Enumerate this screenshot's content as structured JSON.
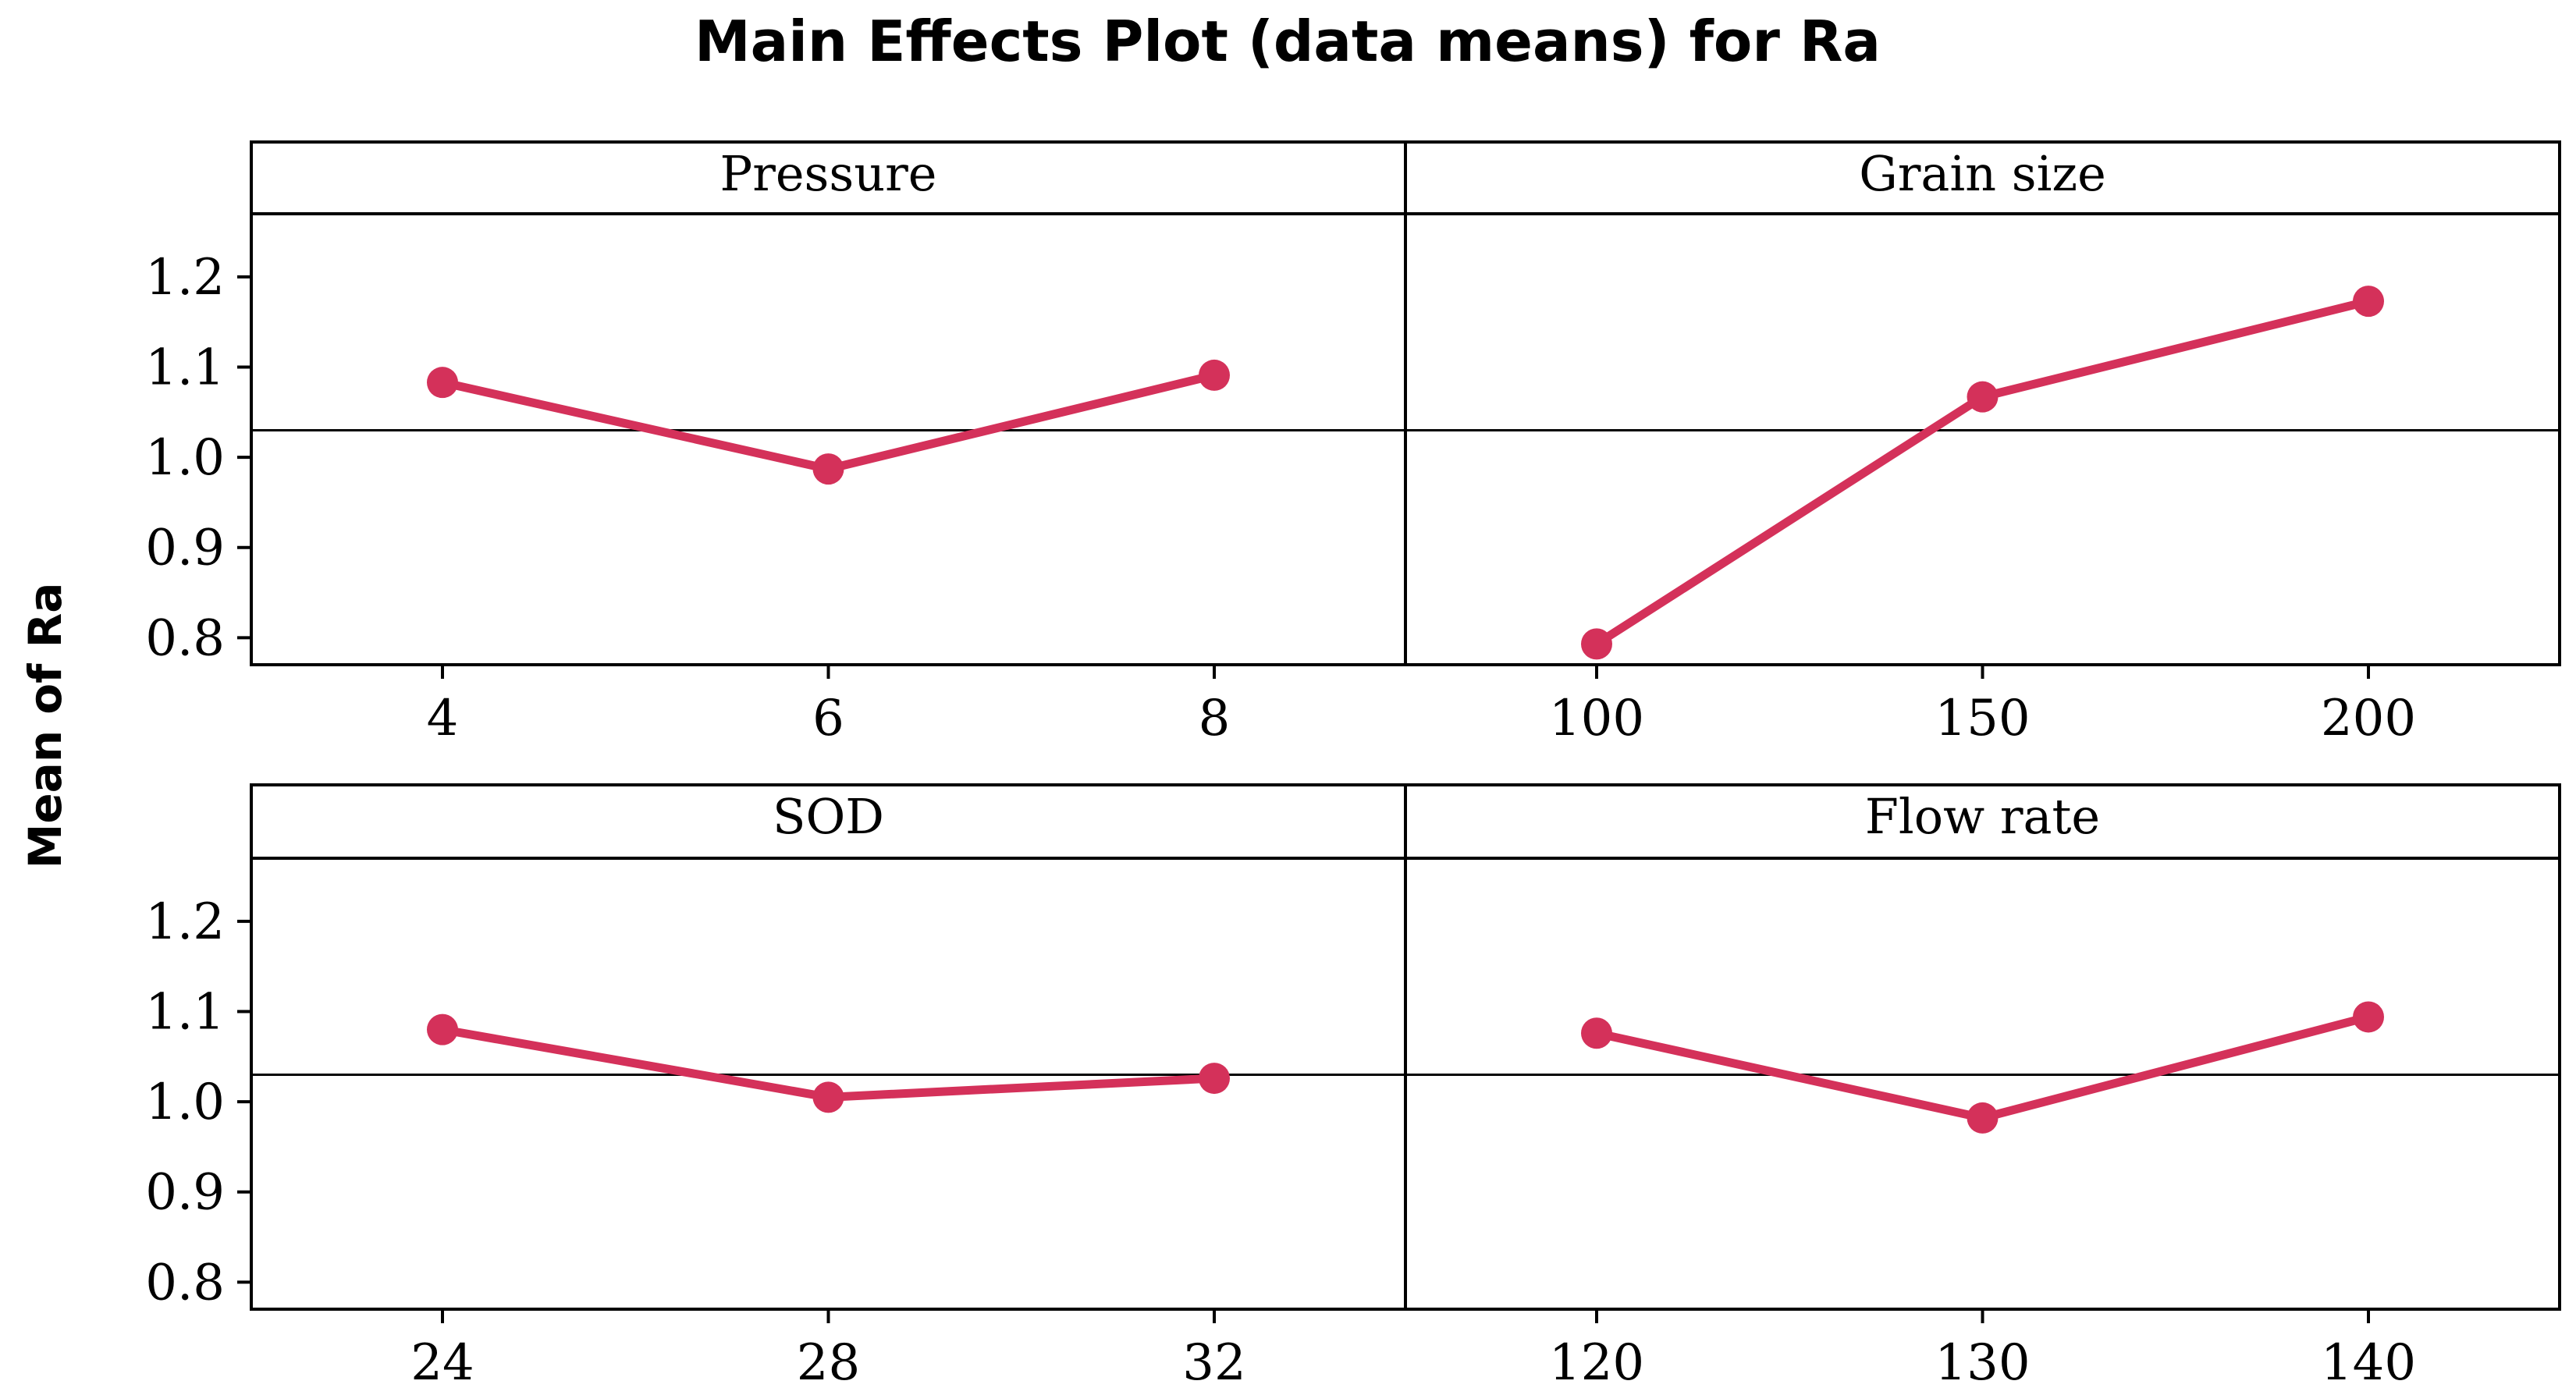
{
  "chart_data": {
    "type": "line",
    "title": "Main Effects Plot (data means) for Ra",
    "ylabel": "Mean of Ra",
    "ylim": [
      0.77,
      1.27
    ],
    "yticks": [
      "0.8",
      "0.9",
      "1.0",
      "1.1",
      "1.2"
    ],
    "ytick_values": [
      0.8,
      0.9,
      1.0,
      1.1,
      1.2
    ],
    "overall_mean": 1.03,
    "series_color": "#d4315a",
    "panels": [
      {
        "name": "Pressure",
        "categories": [
          "4",
          "6",
          "8"
        ],
        "values": [
          1.083,
          0.987,
          1.091
        ]
      },
      {
        "name": "Grain size",
        "categories": [
          "100",
          "150",
          "200"
        ],
        "values": [
          0.793,
          1.067,
          1.173
        ]
      },
      {
        "name": "SOD",
        "categories": [
          "24",
          "28",
          "32"
        ],
        "values": [
          1.08,
          1.005,
          1.026
        ]
      },
      {
        "name": "Flow rate",
        "categories": [
          "120",
          "130",
          "140"
        ],
        "values": [
          1.076,
          0.982,
          1.094
        ]
      }
    ]
  }
}
